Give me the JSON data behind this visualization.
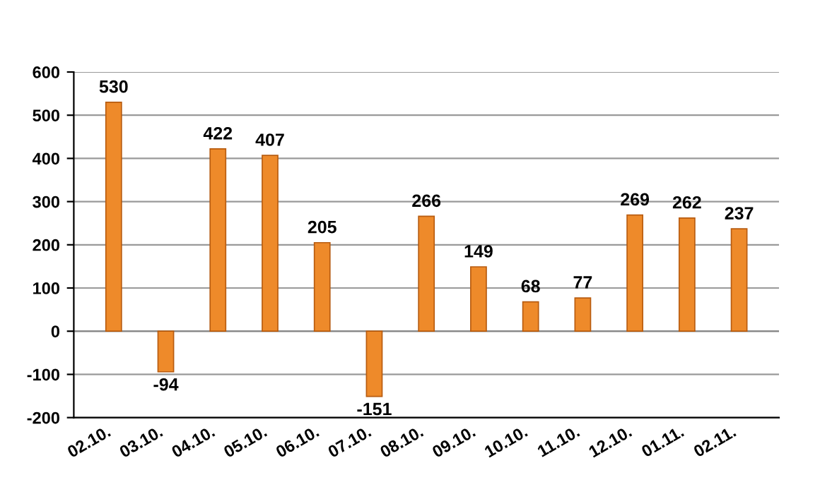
{
  "chart_data": {
    "type": "bar",
    "categories": [
      "02.10.",
      "03.10.",
      "04.10.",
      "05.10.",
      "06.10.",
      "07.10.",
      "08.10.",
      "09.10.",
      "10.10.",
      "11.10.",
      "12.10.",
      "01.11.",
      "02.11."
    ],
    "values": [
      530,
      -94,
      422,
      407,
      205,
      -151,
      266,
      149,
      68,
      77,
      269,
      262,
      237
    ],
    "color": "#ee8a2a",
    "ylim": [
      -200,
      600
    ],
    "yticks": [
      -200,
      -100,
      0,
      100,
      200,
      300,
      400,
      500,
      600
    ],
    "grid": "y",
    "data_labels": true
  }
}
